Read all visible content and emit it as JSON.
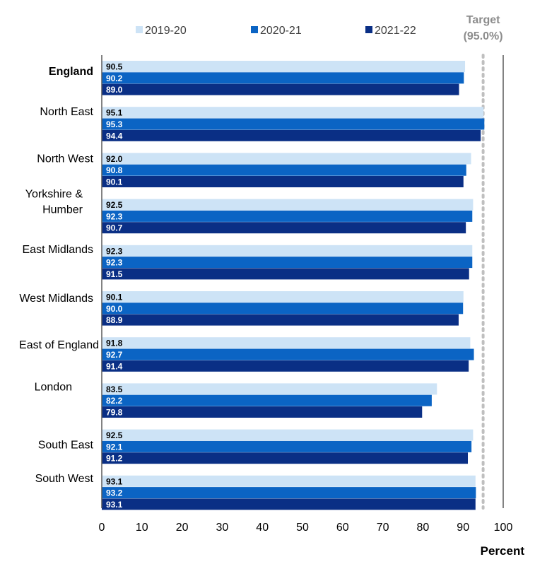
{
  "chart_data": {
    "type": "bar",
    "orientation": "horizontal",
    "categories": [
      "England",
      "North East",
      "North West",
      "Yorkshire & Humber",
      "East Midlands",
      "West Midlands",
      "East of England",
      "London",
      "South East",
      "South West"
    ],
    "category_lines": [
      [
        "England"
      ],
      [
        "North East"
      ],
      [
        "North West"
      ],
      [
        "Yorkshire &",
        "Humber"
      ],
      [
        "East Midlands"
      ],
      [
        "West Midlands"
      ],
      [
        "East of England"
      ],
      [
        "London"
      ],
      [
        "South East"
      ],
      [
        "South West"
      ]
    ],
    "series": [
      {
        "name": "2019-20",
        "color": "#CDE3F6",
        "values": [
          90.5,
          95.1,
          92.0,
          92.5,
          92.3,
          90.1,
          91.8,
          83.5,
          92.5,
          93.1
        ],
        "labels": [
          "90.5",
          "95.1",
          "92.0",
          "92.5",
          "92.3",
          "90.1",
          "91.8",
          "83.5",
          "92.5",
          "93.1"
        ]
      },
      {
        "name": "2020-21",
        "color": "#0B64C4",
        "values": [
          90.2,
          95.3,
          90.8,
          92.3,
          92.3,
          90.0,
          92.7,
          82.2,
          92.1,
          93.2
        ],
        "labels": [
          "90.2",
          "95.3",
          "90.8",
          "92.3",
          "92.3",
          "90.0",
          "92.7",
          "82.2",
          "92.1",
          "93.2"
        ]
      },
      {
        "name": "2021-22",
        "color": "#0A2F85",
        "values": [
          89.0,
          94.4,
          90.1,
          90.7,
          91.5,
          88.9,
          91.4,
          79.8,
          91.2,
          93.1
        ],
        "labels": [
          "89.0",
          "94.4",
          "90.1",
          "90.7",
          "91.5",
          "88.9",
          "91.4",
          "79.8",
          "91.2",
          "93.1"
        ]
      }
    ],
    "xlim": [
      0,
      100
    ],
    "xticks": [
      0,
      10,
      20,
      30,
      40,
      50,
      60,
      70,
      80,
      90,
      100
    ],
    "xlabel": "Percent",
    "target": {
      "value": 95.0,
      "label_line1": "Target",
      "label_line2": "(95.0%)",
      "color": "#BFBFBF"
    },
    "legend_position": "top",
    "grid": false
  }
}
